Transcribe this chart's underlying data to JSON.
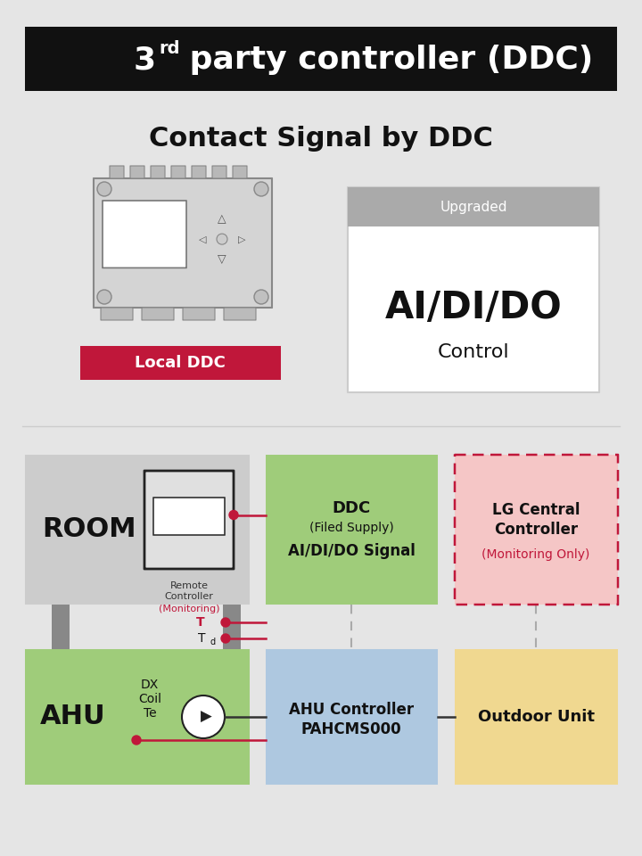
{
  "bg_color": "#e5e5e5",
  "title_bg": "#111111",
  "title_color": "#ffffff",
  "crimson": "#c0173a",
  "gray_pipe": "#8a8a8a",
  "title_text1": "3",
  "title_text2": "rd",
  "title_text3": " party controller (DDC)",
  "subtitle": "Contact Signal by DDC",
  "upgraded_header": "Upgraded",
  "upgraded_main": "AI/DI/DO",
  "upgraded_sub": "Control",
  "local_ddc": "Local DDC",
  "room_label": "ROOM",
  "ahu_label": "AHU",
  "rc_label1": "Remote",
  "rc_label2": "Controller",
  "rc_label3": "(Monitoring)",
  "ddc_l1": "DDC",
  "ddc_l2": "(Filed Supply)",
  "ddc_l3": "AI/DI/DO Signal",
  "lg_l1": "LG Central",
  "lg_l2": "Controller",
  "lg_l3": "(Monitoring Only)",
  "dx_label": "DX\nCoil\nTe",
  "ahu_ctrl_l1": "AHU Controller",
  "ahu_ctrl_l2": "PAHCMS000",
  "outdoor_label": "Outdoor Unit",
  "T_label": "T",
  "Td_label": "T",
  "Td_sub": "d"
}
